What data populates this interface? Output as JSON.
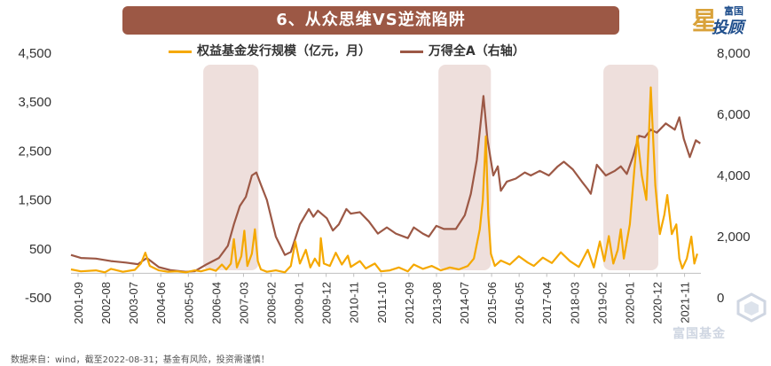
{
  "banner_title": "6、从众思维VS逆流陷阱",
  "logo": {
    "big": "星",
    "top": "富国",
    "bottom": "投顾"
  },
  "footnote": "数据来自：wind，截至2022-08-31；基金有风险，投资需谨慎！",
  "watermark": "富国基金",
  "colors": {
    "primary": "#f5a800",
    "secondary": "#9c5845",
    "shade": "#ecdcd8",
    "banner": "#9c5845"
  },
  "chart_data": {
    "type": "line",
    "title": "6、从众思维VS逆流陷阱",
    "legend": [
      "权益基金发行规模（亿元，月）",
      "万得全A（右轴）"
    ],
    "left_axis": {
      "ylim": [
        -500,
        4500
      ],
      "ticks": [
        "4,500",
        "3,500",
        "2,500",
        "1,500",
        "500",
        "-500"
      ],
      "tick_values": [
        4500,
        3500,
        2500,
        1500,
        500,
        -500
      ]
    },
    "right_axis": {
      "ylim": [
        0,
        8000
      ],
      "ticks": [
        "8,000",
        "6,000",
        "4,000",
        "2,000",
        "0"
      ],
      "tick_values": [
        8000,
        6000,
        4000,
        2000,
        0
      ]
    },
    "x_range": [
      2001.67,
      2022.67
    ],
    "x_ticks": [
      "2001-09",
      "2002-08",
      "2003-07",
      "2004-06",
      "2005-05",
      "2006-04",
      "2007-03",
      "2008-02",
      "2009-01",
      "2009-12",
      "2010-11",
      "2011-10",
      "2012-09",
      "2013-08",
      "2014-07",
      "2015-06",
      "2016-05",
      "2017-04",
      "2018-03",
      "2019-02",
      "2020-01",
      "2020-12",
      "2021-11"
    ],
    "highlight_periods": [
      [
        2006.08,
        2007.92
      ],
      [
        2013.92,
        2015.67
      ],
      [
        2019.42,
        2021.25
      ]
    ],
    "series": [
      {
        "name": "权益基金发行规模（亿元，月）",
        "axis": "left",
        "points": [
          [
            2001.67,
            80
          ],
          [
            2002.0,
            40
          ],
          [
            2002.5,
            60
          ],
          [
            2002.8,
            20
          ],
          [
            2003.0,
            90
          ],
          [
            2003.4,
            30
          ],
          [
            2003.8,
            70
          ],
          [
            2004.0,
            200
          ],
          [
            2004.15,
            420
          ],
          [
            2004.3,
            150
          ],
          [
            2004.6,
            60
          ],
          [
            2004.9,
            30
          ],
          [
            2005.2,
            40
          ],
          [
            2005.5,
            20
          ],
          [
            2005.8,
            60
          ],
          [
            2006.0,
            40
          ],
          [
            2006.3,
            90
          ],
          [
            2006.5,
            50
          ],
          [
            2006.7,
            180
          ],
          [
            2006.85,
            80
          ],
          [
            2007.0,
            200
          ],
          [
            2007.1,
            700
          ],
          [
            2007.2,
            120
          ],
          [
            2007.35,
            350
          ],
          [
            2007.45,
            870
          ],
          [
            2007.55,
            150
          ],
          [
            2007.7,
            400
          ],
          [
            2007.8,
            900
          ],
          [
            2007.9,
            250
          ],
          [
            2008.0,
            80
          ],
          [
            2008.2,
            30
          ],
          [
            2008.5,
            60
          ],
          [
            2008.8,
            20
          ],
          [
            2009.0,
            150
          ],
          [
            2009.15,
            650
          ],
          [
            2009.3,
            200
          ],
          [
            2009.5,
            480
          ],
          [
            2009.65,
            120
          ],
          [
            2009.8,
            300
          ],
          [
            2009.95,
            150
          ],
          [
            2010.0,
            720
          ],
          [
            2010.1,
            200
          ],
          [
            2010.3,
            150
          ],
          [
            2010.5,
            420
          ],
          [
            2010.7,
            180
          ],
          [
            2010.9,
            360
          ],
          [
            2011.0,
            130
          ],
          [
            2011.3,
            250
          ],
          [
            2011.5,
            100
          ],
          [
            2011.8,
            200
          ],
          [
            2012.0,
            40
          ],
          [
            2012.3,
            60
          ],
          [
            2012.6,
            120
          ],
          [
            2012.9,
            40
          ],
          [
            2013.1,
            180
          ],
          [
            2013.4,
            90
          ],
          [
            2013.7,
            150
          ],
          [
            2014.0,
            60
          ],
          [
            2014.3,
            120
          ],
          [
            2014.6,
            80
          ],
          [
            2014.9,
            150
          ],
          [
            2015.1,
            300
          ],
          [
            2015.3,
            900
          ],
          [
            2015.4,
            1500
          ],
          [
            2015.5,
            2800
          ],
          [
            2015.58,
            1200
          ],
          [
            2015.67,
            400
          ],
          [
            2015.8,
            150
          ],
          [
            2016.0,
            260
          ],
          [
            2016.3,
            180
          ],
          [
            2016.6,
            350
          ],
          [
            2016.9,
            220
          ],
          [
            2017.1,
            150
          ],
          [
            2017.4,
            320
          ],
          [
            2017.7,
            210
          ],
          [
            2018.0,
            430
          ],
          [
            2018.3,
            250
          ],
          [
            2018.6,
            130
          ],
          [
            2018.9,
            480
          ],
          [
            2019.1,
            120
          ],
          [
            2019.3,
            650
          ],
          [
            2019.45,
            250
          ],
          [
            2019.6,
            760
          ],
          [
            2019.75,
            200
          ],
          [
            2019.9,
            480
          ],
          [
            2020.0,
            900
          ],
          [
            2020.1,
            300
          ],
          [
            2020.3,
            1000
          ],
          [
            2020.45,
            2100
          ],
          [
            2020.55,
            2800
          ],
          [
            2020.7,
            2000
          ],
          [
            2020.85,
            1500
          ],
          [
            2021.0,
            3800
          ],
          [
            2021.15,
            1800
          ],
          [
            2021.3,
            800
          ],
          [
            2021.45,
            1200
          ],
          [
            2021.55,
            1600
          ],
          [
            2021.7,
            800
          ],
          [
            2021.85,
            1000
          ],
          [
            2021.95,
            300
          ],
          [
            2022.05,
            100
          ],
          [
            2022.2,
            300
          ],
          [
            2022.35,
            750
          ],
          [
            2022.45,
            200
          ],
          [
            2022.55,
            400
          ]
        ]
      },
      {
        "name": "万得全A（右轴）",
        "axis": "right",
        "points": [
          [
            2001.67,
            1400
          ],
          [
            2002.0,
            1300
          ],
          [
            2002.5,
            1280
          ],
          [
            2003.0,
            1200
          ],
          [
            2003.5,
            1150
          ],
          [
            2003.9,
            1100
          ],
          [
            2004.2,
            1300
          ],
          [
            2004.6,
            1000
          ],
          [
            2005.0,
            900
          ],
          [
            2005.5,
            850
          ],
          [
            2005.8,
            870
          ],
          [
            2006.2,
            1100
          ],
          [
            2006.6,
            1300
          ],
          [
            2006.9,
            1700
          ],
          [
            2007.1,
            2400
          ],
          [
            2007.3,
            3000
          ],
          [
            2007.5,
            3300
          ],
          [
            2007.7,
            4000
          ],
          [
            2007.85,
            4100
          ],
          [
            2008.0,
            3700
          ],
          [
            2008.2,
            3200
          ],
          [
            2008.5,
            2000
          ],
          [
            2008.8,
            1400
          ],
          [
            2009.0,
            1500
          ],
          [
            2009.3,
            2400
          ],
          [
            2009.6,
            2900
          ],
          [
            2009.75,
            2650
          ],
          [
            2009.9,
            2850
          ],
          [
            2010.2,
            2600
          ],
          [
            2010.4,
            2200
          ],
          [
            2010.6,
            2400
          ],
          [
            2010.85,
            2900
          ],
          [
            2011.0,
            2750
          ],
          [
            2011.3,
            2800
          ],
          [
            2011.6,
            2500
          ],
          [
            2011.9,
            2100
          ],
          [
            2012.2,
            2300
          ],
          [
            2012.5,
            2100
          ],
          [
            2012.9,
            1950
          ],
          [
            2013.1,
            2300
          ],
          [
            2013.4,
            2100
          ],
          [
            2013.6,
            2000
          ],
          [
            2013.85,
            2350
          ],
          [
            2014.1,
            2250
          ],
          [
            2014.5,
            2250
          ],
          [
            2014.8,
            2700
          ],
          [
            2015.0,
            3400
          ],
          [
            2015.2,
            4500
          ],
          [
            2015.42,
            6600
          ],
          [
            2015.55,
            5200
          ],
          [
            2015.75,
            4000
          ],
          [
            2015.9,
            4300
          ],
          [
            2016.0,
            3500
          ],
          [
            2016.2,
            3800
          ],
          [
            2016.5,
            3900
          ],
          [
            2016.8,
            4100
          ],
          [
            2017.0,
            4000
          ],
          [
            2017.3,
            4150
          ],
          [
            2017.6,
            4000
          ],
          [
            2017.9,
            4300
          ],
          [
            2018.1,
            4450
          ],
          [
            2018.4,
            4200
          ],
          [
            2018.7,
            3800
          ],
          [
            2018.9,
            3550
          ],
          [
            2019.0,
            3400
          ],
          [
            2019.2,
            4350
          ],
          [
            2019.5,
            4000
          ],
          [
            2019.8,
            4150
          ],
          [
            2020.0,
            4300
          ],
          [
            2020.2,
            4050
          ],
          [
            2020.4,
            4600
          ],
          [
            2020.6,
            5300
          ],
          [
            2020.8,
            5250
          ],
          [
            2021.0,
            5500
          ],
          [
            2021.2,
            5400
          ],
          [
            2021.5,
            5700
          ],
          [
            2021.8,
            5500
          ],
          [
            2021.95,
            5900
          ],
          [
            2022.1,
            5200
          ],
          [
            2022.3,
            4600
          ],
          [
            2022.5,
            5150
          ],
          [
            2022.65,
            5050
          ]
        ]
      }
    ]
  }
}
